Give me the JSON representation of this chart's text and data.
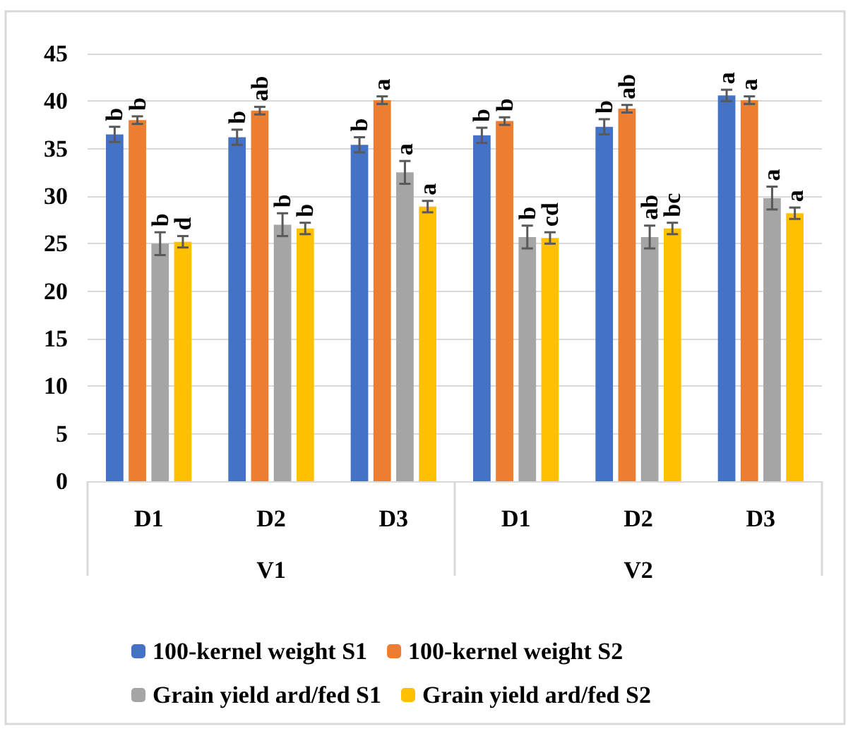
{
  "chart_data": {
    "type": "bar",
    "categories": [
      "D1",
      "D2",
      "D3",
      "D1",
      "D2",
      "D3"
    ],
    "series": [
      {
        "name": "100-kernel weight S1",
        "color": "#4472c4",
        "values": [
          36.5,
          36.2,
          35.4,
          36.4,
          37.3,
          40.6
        ],
        "errors": [
          0.8,
          0.8,
          0.8,
          0.8,
          0.8,
          0.6
        ],
        "value_labels": [
          "b",
          "b",
          "b",
          "b",
          "b",
          "a"
        ]
      },
      {
        "name": "100-kernel weight S2",
        "color": "#ed7d31",
        "values": [
          38,
          39,
          40.1,
          37.9,
          39.2,
          40.1
        ],
        "errors": [
          0.4,
          0.4,
          0.4,
          0.4,
          0.4,
          0.4
        ],
        "value_labels": [
          "b",
          "ab",
          "a",
          "b",
          "ab",
          "a"
        ]
      },
      {
        "name": "Grain yield ard/fed S1",
        "color": "#a5a5a5",
        "values": [
          25,
          27,
          32.5,
          25.7,
          25.7,
          29.8
        ],
        "errors": [
          1.2,
          1.2,
          1.2,
          1.2,
          1.2,
          1.2
        ],
        "value_labels": [
          "b",
          "b",
          "a",
          "b",
          "ab",
          "a"
        ]
      },
      {
        "name": "Grain yield ard/fed S2",
        "color": "#ffc000",
        "values": [
          25.2,
          26.6,
          28.9,
          25.6,
          26.6,
          28.2
        ],
        "errors": [
          0.6,
          0.6,
          0.6,
          0.6,
          0.6,
          0.6
        ],
        "value_labels": [
          "d",
          "b",
          "a",
          "cd",
          "bc",
          "a"
        ]
      }
    ],
    "annotations": [
      "V1",
      "V2"
    ],
    "ylim": [
      0,
      45
    ],
    "yticks": [
      0,
      5,
      10,
      15,
      20,
      25,
      30,
      35,
      40,
      45
    ],
    "grid": "y",
    "legend": "bottom"
  }
}
